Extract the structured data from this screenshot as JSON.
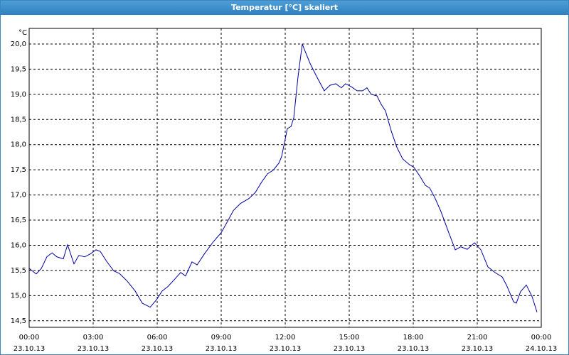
{
  "chart_data": {
    "type": "line",
    "title": "Temperatur [°C] skaliert",
    "y_label": "°C",
    "x": [
      0,
      0.33,
      0.57,
      0.83,
      1.07,
      1.3,
      1.6,
      1.8,
      2.1,
      2.33,
      2.6,
      2.87,
      3.13,
      3.33,
      3.63,
      3.97,
      4.23,
      4.57,
      4.97,
      5.3,
      5.67,
      5.97,
      6.23,
      6.5,
      6.83,
      7.1,
      7.33,
      7.63,
      7.87,
      8.23,
      8.63,
      9,
      9.33,
      9.57,
      9.9,
      10.3,
      10.6,
      10.9,
      11.17,
      11.43,
      11.7,
      11.83,
      11.97,
      12.1,
      12.27,
      12.4,
      12.6,
      12.8,
      12.9,
      13.17,
      13.43,
      13.83,
      14.1,
      14.37,
      14.63,
      14.83,
      15.1,
      15.37,
      15.63,
      15.83,
      16.03,
      16.3,
      16.47,
      16.7,
      16.97,
      17.23,
      17.5,
      17.83,
      18.03,
      18.3,
      18.57,
      18.77,
      19.03,
      19.3,
      19.63,
      19.97,
      20.23,
      20.53,
      20.87,
      21.17,
      21.5,
      21.83,
      22.17,
      22.37,
      22.7,
      22.83,
      23.03,
      23.3,
      23.57,
      23.8
    ],
    "values": [
      15.54,
      15.43,
      15.54,
      15.77,
      15.85,
      15.77,
      15.73,
      16.01,
      15.63,
      15.8,
      15.77,
      15.83,
      15.91,
      15.88,
      15.68,
      15.49,
      15.44,
      15.3,
      15.09,
      14.85,
      14.77,
      14.92,
      15.09,
      15.18,
      15.33,
      15.46,
      15.39,
      15.67,
      15.61,
      15.84,
      16.07,
      16.25,
      16.5,
      16.69,
      16.83,
      16.93,
      17.05,
      17.26,
      17.42,
      17.49,
      17.63,
      17.76,
      18.05,
      18.32,
      18.36,
      18.53,
      19.35,
      20.0,
      19.89,
      19.61,
      19.39,
      19.07,
      19.18,
      19.21,
      19.13,
      19.21,
      19.15,
      19.07,
      19.07,
      19.13,
      19.0,
      18.97,
      18.82,
      18.67,
      18.27,
      17.95,
      17.72,
      17.6,
      17.55,
      17.38,
      17.19,
      17.14,
      16.93,
      16.67,
      16.29,
      15.91,
      15.97,
      15.92,
      16.05,
      15.91,
      15.57,
      15.46,
      15.37,
      15.21,
      14.88,
      14.85,
      15.08,
      15.21,
      14.98,
      14.67
    ],
    "color": "#0000a0",
    "xlim": [
      0,
      24
    ],
    "xticks": [
      {
        "value": 0,
        "label": "00:00",
        "date": "23.10.13"
      },
      {
        "value": 3,
        "label": "03:00",
        "date": "23.10.13"
      },
      {
        "value": 6,
        "label": "06:00",
        "date": "23.10.13"
      },
      {
        "value": 9,
        "label": "09:00",
        "date": "23.10.13"
      },
      {
        "value": 12,
        "label": "12:00",
        "date": "23.10.13"
      },
      {
        "value": 15,
        "label": "15:00",
        "date": "23.10.13"
      },
      {
        "value": 18,
        "label": "18:00",
        "date": "23.10.13"
      },
      {
        "value": 21,
        "label": "21:00",
        "date": "23.10.13"
      },
      {
        "value": 24,
        "label": "00:00",
        "date": "24.10.13"
      }
    ],
    "ylim": [
      14.37,
      20.31
    ],
    "yticks": [
      {
        "value": 14.5,
        "label": "14,5"
      },
      {
        "value": 15,
        "label": "15,0"
      },
      {
        "value": 15.5,
        "label": "15,5"
      },
      {
        "value": 16,
        "label": "16,0"
      },
      {
        "value": 16.5,
        "label": "16,5"
      },
      {
        "value": 17,
        "label": "17,0"
      },
      {
        "value": 17.5,
        "label": "17,5"
      },
      {
        "value": 18,
        "label": "18,0"
      },
      {
        "value": 18.5,
        "label": "18,5"
      },
      {
        "value": 19,
        "label": "19,0"
      },
      {
        "value": 19.5,
        "label": "19,5"
      },
      {
        "value": 20,
        "label": "20,0"
      }
    ],
    "grid": true
  }
}
